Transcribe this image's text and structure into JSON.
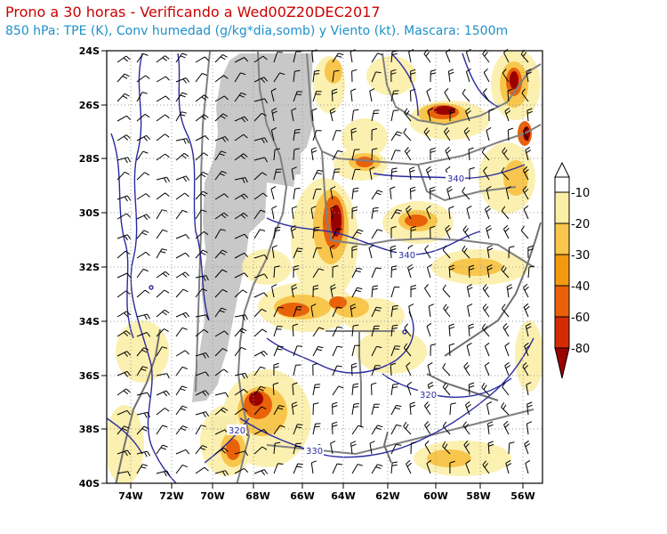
{
  "header": {
    "title": "Prono a 30 horas - Verificando a Wed00Z20DEC2017",
    "subtitle": "850 hPa: TPE (K), Conv humedad (g/kg*dia,somb) y Viento (kt). Mascara: 1500m"
  },
  "map": {
    "lat_labels": [
      "24S",
      "26S",
      "28S",
      "30S",
      "32S",
      "34S",
      "36S",
      "38S",
      "40S"
    ],
    "lon_labels": [
      "74W",
      "72W",
      "70W",
      "68W",
      "66W",
      "64W",
      "62W",
      "60W",
      "58W",
      "56W"
    ],
    "contour_labels": [
      "340",
      "340",
      "320",
      "320",
      "330"
    ]
  },
  "colorbar": {
    "labels": [
      "-10",
      "-20",
      "-30",
      "-40",
      "-60",
      "-80"
    ],
    "colors": [
      "#ffffff",
      "#fbefa8",
      "#f8c64c",
      "#f39a10",
      "#e9620a",
      "#d52b05",
      "#9b0000"
    ]
  },
  "colors": {
    "title": "#cc0000",
    "subtitle": "#1e90c8",
    "contour": "#2a2aa0",
    "mask": "#c8c8c8",
    "borders": "#808080"
  }
}
